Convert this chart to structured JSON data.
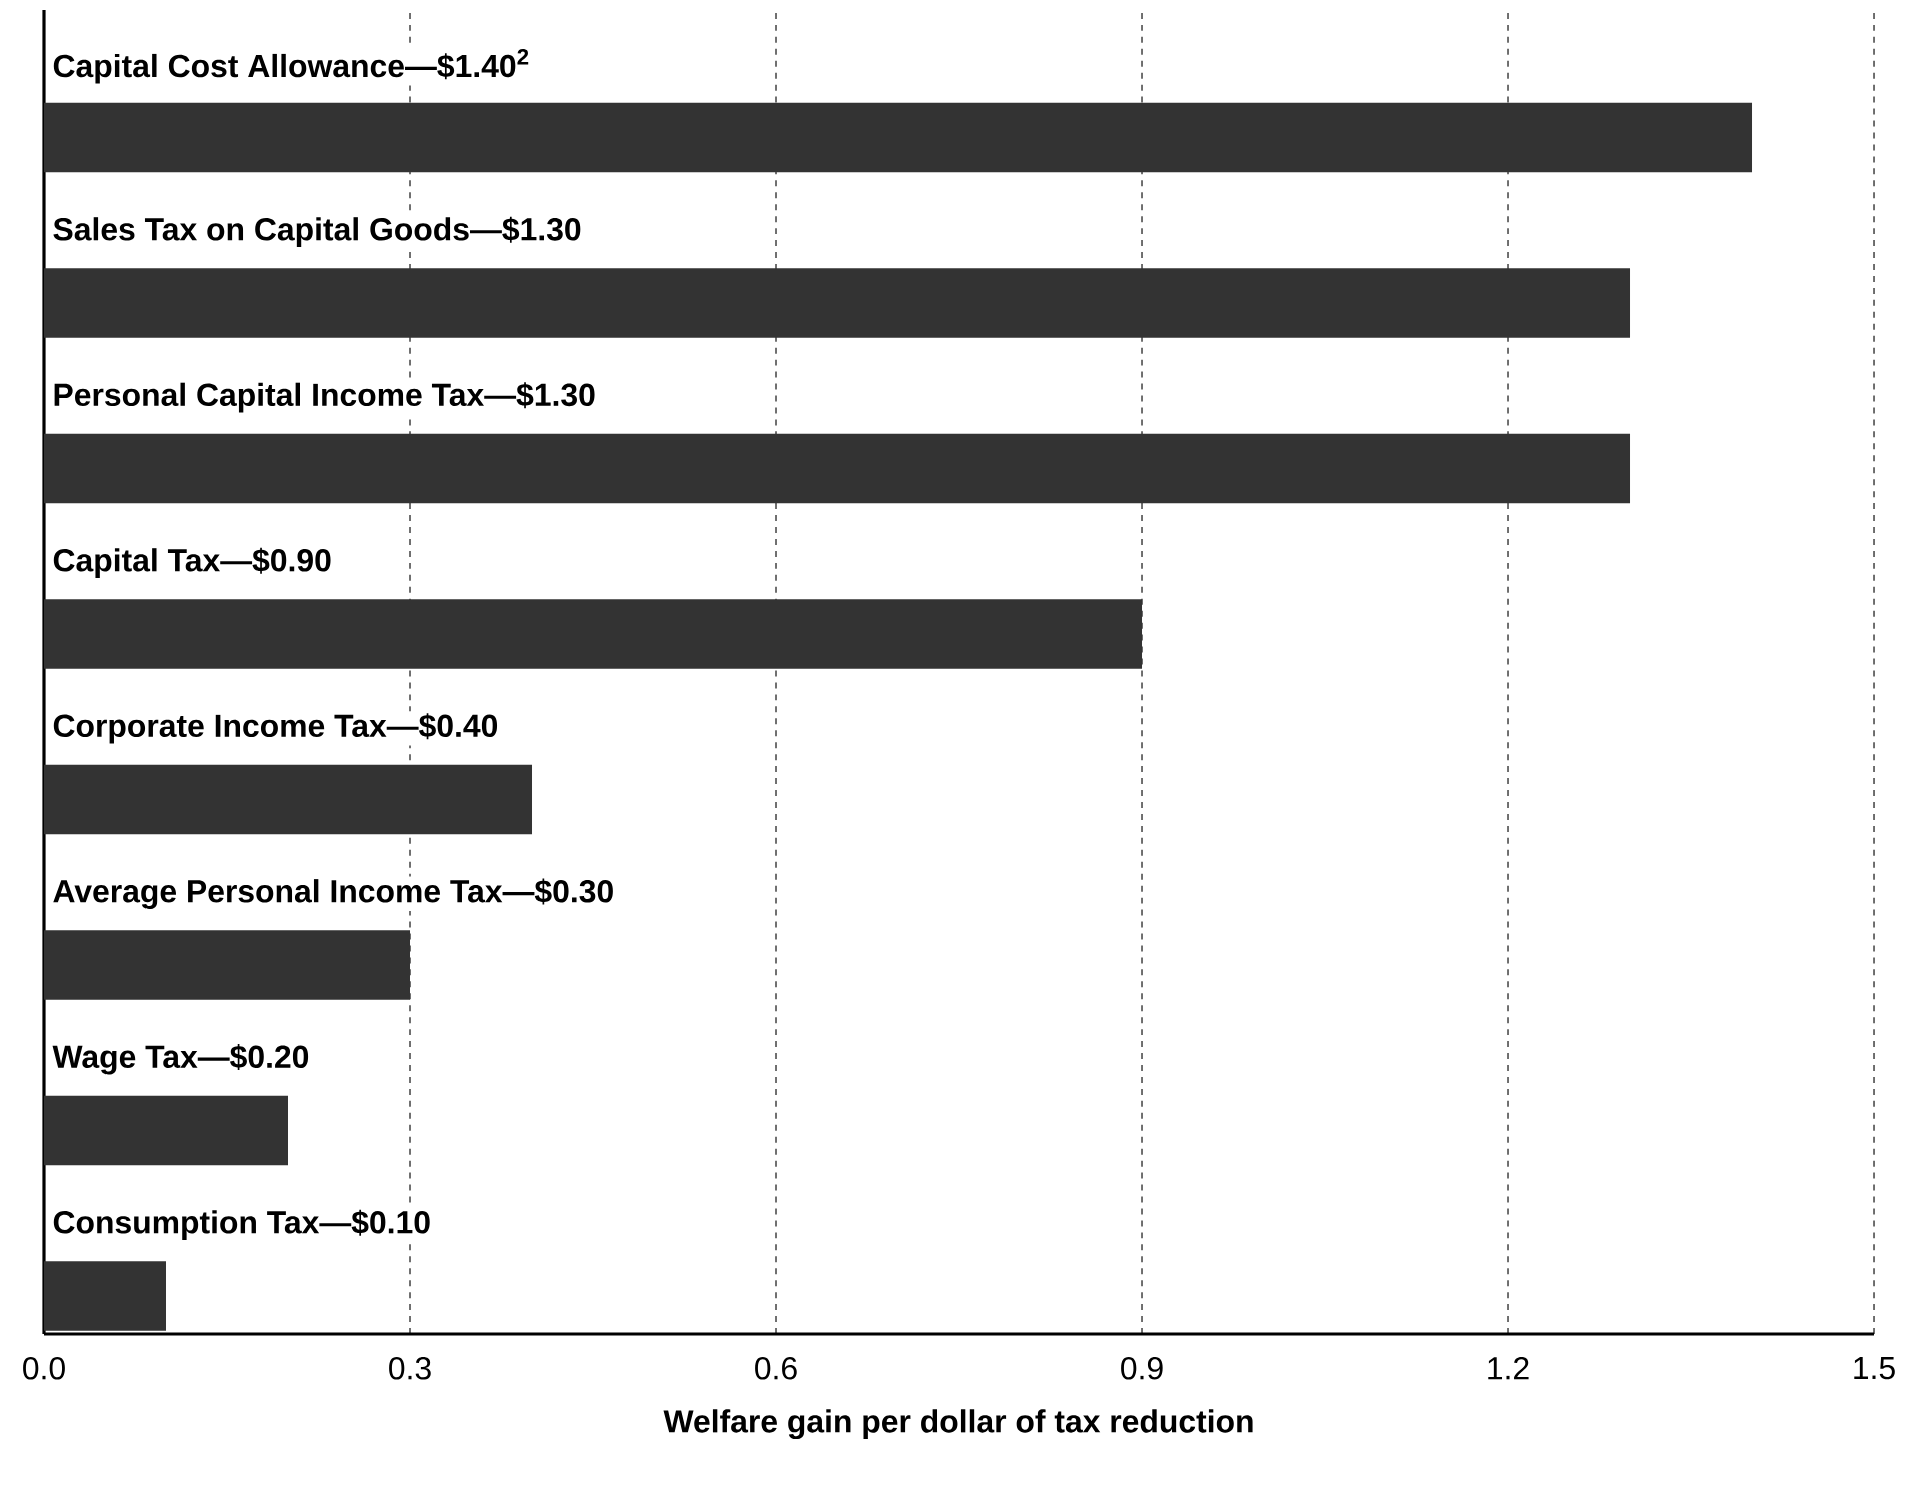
{
  "chart_data": {
    "type": "bar",
    "orientation": "horizontal",
    "categories": [
      "Capital Cost Allowance—$1.40$^{2}$",
      "Sales Tax on Capital Goods—$1.30",
      "Personal Capital Income Tax—$1.30",
      "Capital Tax—$0.90",
      "Corporate Income Tax—$0.40",
      "Average Personal Income Tax—$0.30",
      "Wage Tax—$0.20",
      "Consumption Tax—$0.10"
    ],
    "values": [
      1.4,
      1.3,
      1.3,
      0.9,
      0.4,
      0.3,
      0.2,
      0.1
    ],
    "color": "#333333",
    "xlabel": "Welfare gain per dollar of tax reduction",
    "xlim": [
      0,
      1.5
    ],
    "xticks": [
      {
        "value": 0,
        "label": "0.0"
      },
      0.3,
      0.6,
      0.9,
      1.2,
      1.5
    ],
    "grid": "x"
  }
}
